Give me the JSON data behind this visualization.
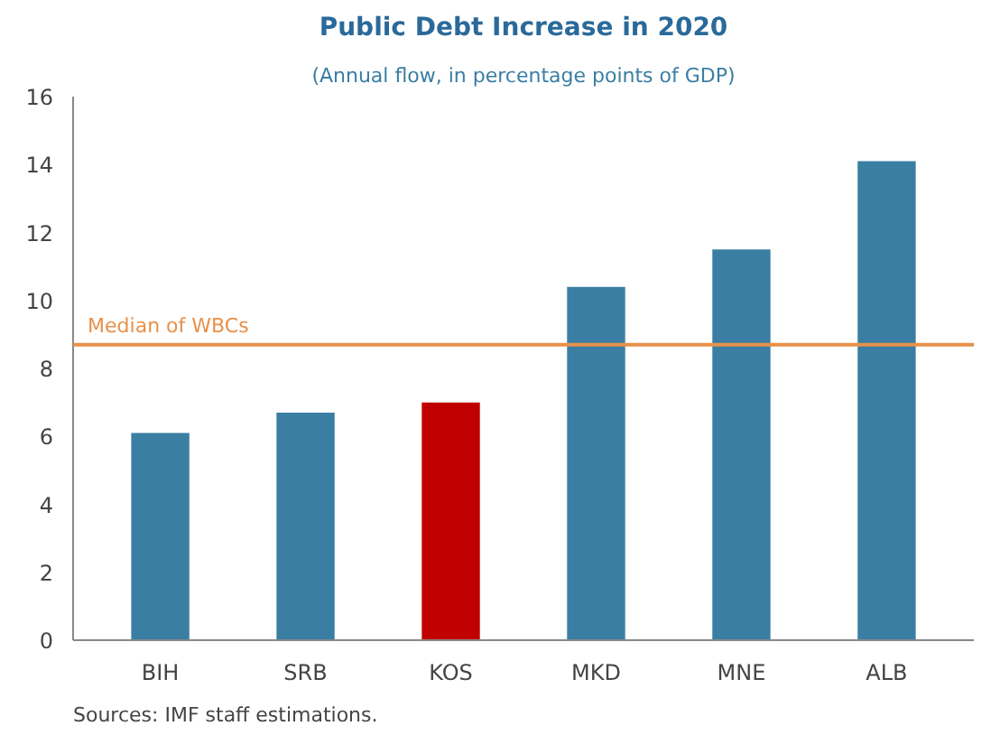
{
  "chart_data": {
    "type": "bar",
    "title": "Public Debt Increase in 2020",
    "subtitle": "(Annual flow, in percentage points of GDP)",
    "categories": [
      "BIH",
      "SRB",
      "KOS",
      "MKD",
      "MNE",
      "ALB"
    ],
    "values": [
      6.1,
      6.7,
      7.0,
      10.4,
      11.5,
      14.1
    ],
    "colors": [
      "#3a7ea3",
      "#3a7ea3",
      "#c00000",
      "#3a7ea3",
      "#3a7ea3",
      "#3a7ea3"
    ],
    "ylim": [
      0,
      16
    ],
    "yticks": [
      0,
      2,
      4,
      6,
      8,
      10,
      12,
      14,
      16
    ],
    "grid": false,
    "ref_lines": [
      {
        "axis": "y",
        "value": 8.7,
        "label": "Median of WBCs",
        "color": "#e8914a"
      }
    ],
    "annotations": [
      "Sources: IMF staff estimations."
    ]
  }
}
